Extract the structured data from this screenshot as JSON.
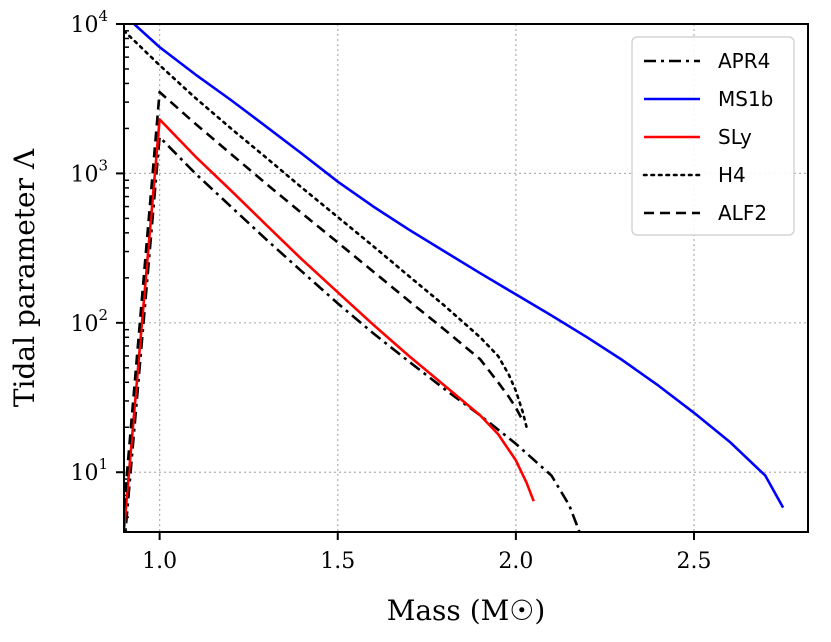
{
  "chart_data": {
    "type": "line",
    "title": "",
    "xlabel": "Mass (M☉)",
    "ylabel": "Tidal parameter Λ",
    "xlim": [
      0.9,
      2.82
    ],
    "ylim_log10": [
      0.6,
      4.0
    ],
    "yscale": "log",
    "grid": true,
    "legend_position": "top-right",
    "x_ticks": [
      {
        "value": 1.0,
        "label": "1.0"
      },
      {
        "value": 1.5,
        "label": "1.5"
      },
      {
        "value": 2.0,
        "label": "2.0"
      },
      {
        "value": 2.5,
        "label": "2.5"
      }
    ],
    "y_ticks": [
      {
        "exp": 1,
        "base": "10",
        "sup": "1"
      },
      {
        "exp": 2,
        "base": "10",
        "sup": "2"
      },
      {
        "exp": 3,
        "base": "10",
        "sup": "3"
      },
      {
        "exp": 4,
        "base": "10",
        "sup": "4"
      }
    ],
    "series": [
      {
        "name": "APR4",
        "color": "#000000",
        "style": "dashdot",
        "points": [
          [
            0.9,
            3.1
          ],
          [
            1.0,
            1750
          ],
          [
            1.1,
            1000
          ],
          [
            1.2,
            600
          ],
          [
            1.3,
            360
          ],
          [
            1.4,
            220
          ],
          [
            1.5,
            135
          ],
          [
            1.6,
            85
          ],
          [
            1.7,
            55
          ],
          [
            1.8,
            36
          ],
          [
            1.9,
            24
          ],
          [
            2.0,
            15.5
          ],
          [
            2.1,
            9.5
          ],
          [
            2.15,
            6
          ],
          [
            2.18,
            3.9
          ]
        ]
      },
      {
        "name": "MS1b",
        "color": "#0000ff",
        "style": "solid",
        "points": [
          [
            0.9,
            11500
          ],
          [
            1.0,
            7000
          ],
          [
            1.1,
            4600
          ],
          [
            1.2,
            3100
          ],
          [
            1.3,
            2050
          ],
          [
            1.4,
            1350
          ],
          [
            1.5,
            880
          ],
          [
            1.6,
            600
          ],
          [
            1.7,
            420
          ],
          [
            1.8,
            300
          ],
          [
            1.9,
            215
          ],
          [
            2.0,
            155
          ],
          [
            2.1,
            112
          ],
          [
            2.2,
            80
          ],
          [
            2.3,
            56
          ],
          [
            2.4,
            38
          ],
          [
            2.5,
            25
          ],
          [
            2.6,
            16
          ],
          [
            2.7,
            9.5
          ],
          [
            2.75,
            5.8
          ]
        ]
      },
      {
        "name": "SLy",
        "color": "#ff0000",
        "style": "solid",
        "points": [
          [
            0.9,
            4.1
          ],
          [
            1.0,
            2300
          ],
          [
            1.1,
            1300
          ],
          [
            1.2,
            770
          ],
          [
            1.3,
            450
          ],
          [
            1.4,
            265
          ],
          [
            1.5,
            160
          ],
          [
            1.6,
            97
          ],
          [
            1.7,
            60
          ],
          [
            1.8,
            38
          ],
          [
            1.9,
            24
          ],
          [
            1.95,
            18
          ],
          [
            2.0,
            12
          ],
          [
            2.03,
            8.5
          ],
          [
            2.05,
            6.4
          ]
        ]
      },
      {
        "name": "H4",
        "color": "#000000",
        "style": "dotted",
        "points": [
          [
            0.9,
            9000
          ],
          [
            1.0,
            5300
          ],
          [
            1.1,
            3200
          ],
          [
            1.2,
            2000
          ],
          [
            1.3,
            1270
          ],
          [
            1.4,
            800
          ],
          [
            1.5,
            510
          ],
          [
            1.6,
            325
          ],
          [
            1.7,
            205
          ],
          [
            1.8,
            130
          ],
          [
            1.9,
            80
          ],
          [
            1.95,
            60
          ],
          [
            1.98,
            45
          ],
          [
            2.0,
            35
          ],
          [
            2.02,
            25
          ],
          [
            2.03,
            20
          ]
        ]
      },
      {
        "name": "ALF2",
        "color": "#000000",
        "style": "dashed",
        "points": [
          [
            0.9,
            5.75
          ],
          [
            1.0,
            3500
          ],
          [
            1.1,
            2150
          ],
          [
            1.2,
            1350
          ],
          [
            1.3,
            850
          ],
          [
            1.4,
            540
          ],
          [
            1.5,
            345
          ],
          [
            1.6,
            220
          ],
          [
            1.7,
            140
          ],
          [
            1.8,
            90
          ],
          [
            1.9,
            57
          ],
          [
            1.95,
            40
          ],
          [
            1.98,
            32
          ],
          [
            2.0,
            27
          ],
          [
            2.02,
            22
          ]
        ]
      }
    ]
  }
}
